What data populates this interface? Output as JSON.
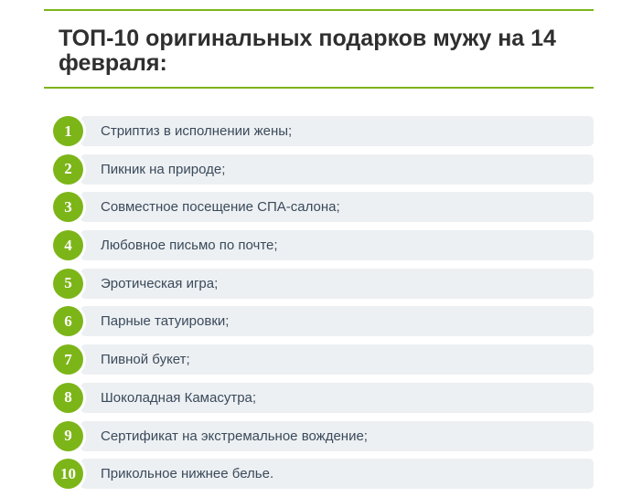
{
  "header": {
    "title": "ТОП-10 оригинальных подарков мужу на 14 февраля:",
    "accent_color": "#7cb518"
  },
  "list": {
    "items": [
      {
        "number": "1",
        "text": "Стриптиз в исполнении жены;"
      },
      {
        "number": "2",
        "text": "Пикник на природе;"
      },
      {
        "number": "3",
        "text": "Совместное посещение СПА-салона;"
      },
      {
        "number": "4",
        "text": "Любовное письмо по почте;"
      },
      {
        "number": "5",
        "text": "Эротическая игра;"
      },
      {
        "number": "6",
        "text": "Парные татуировки;"
      },
      {
        "number": "7",
        "text": "Пивной букет;"
      },
      {
        "number": "8",
        "text": "Шоколадная Камасутра;"
      },
      {
        "number": "9",
        "text": "Сертификат на экстремальное вождение;"
      },
      {
        "number": "10",
        "text": "Прикольное нижнее белье."
      }
    ]
  }
}
